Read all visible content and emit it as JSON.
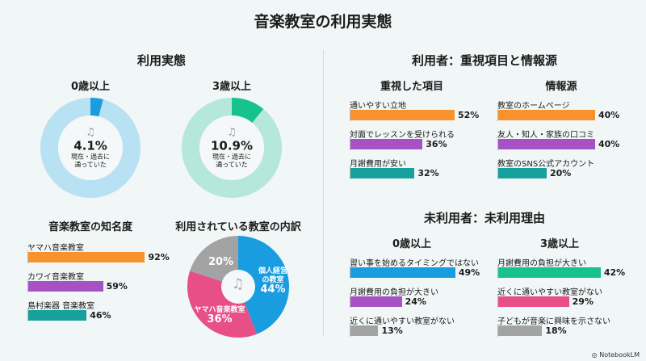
{
  "title": "音楽教室の利用実態",
  "left": {
    "title": "利用実態",
    "donuts": [
      {
        "label": "0歳以上",
        "value": 4.1,
        "value_text": "4.1%",
        "caption1": "現在・過去に",
        "caption2": "通っていた",
        "color": "#1a9de0",
        "track": "#b9e1f4"
      },
      {
        "label": "3歳以上",
        "value": 10.9,
        "value_text": "10.9%",
        "caption1": "現在・過去に",
        "caption2": "通っていた",
        "color": "#17c28f",
        "track": "#b6e8da"
      }
    ],
    "awareness": {
      "title": "音楽教室の知名度",
      "items": [
        {
          "label": "ヤマハ音楽教室",
          "value": 92,
          "text": "92%",
          "color": "#f7922e"
        },
        {
          "label": "カワイ音楽教室",
          "value": 59,
          "text": "59%",
          "color": "#a652c4"
        },
        {
          "label": "島村楽器 音楽教室",
          "value": 46,
          "text": "46%",
          "color": "#17a19c"
        }
      ]
    },
    "breakdown": {
      "title": "利用されている教室の内訳",
      "slices": [
        {
          "label": "個人経営の教室",
          "line1": "個人経営",
          "line2": "の教室",
          "value": 44,
          "text": "44%",
          "color": "#1a9de0"
        },
        {
          "label": "ヤマハ音楽教室",
          "line1": "ヤマハ音楽教室",
          "line2": "",
          "value": 36,
          "text": "36%",
          "color": "#e84f86"
        },
        {
          "label": "",
          "line1": "",
          "line2": "",
          "value": 20,
          "text": "20%",
          "color": "#a3a3a3"
        }
      ]
    }
  },
  "right_top": {
    "title": "利用者：重視項目と情報源",
    "priorities": {
      "title": "重視した項目",
      "items": [
        {
          "label": "通いやすい立地",
          "value": 52,
          "text": "52%",
          "color": "#f7922e"
        },
        {
          "label": "対面でレッスンを受けられる",
          "value": 36,
          "text": "36%",
          "color": "#a652c4"
        },
        {
          "label": "月謝費用が安い",
          "value": 32,
          "text": "32%",
          "color": "#17a19c"
        }
      ]
    },
    "sources": {
      "title": "情報源",
      "items": [
        {
          "label": "教室のホームページ",
          "value": 40,
          "text": "40%",
          "color": "#f7922e"
        },
        {
          "label": "友人・知人・家族の口コミ",
          "value": 40,
          "text": "40%",
          "color": "#a652c4"
        },
        {
          "label": "教室のSNS公式アカウント",
          "value": 20,
          "text": "20%",
          "color": "#17a19c"
        }
      ]
    }
  },
  "right_bottom": {
    "title": "未利用者：未利用理由",
    "age0": {
      "title": "0歳以上",
      "items": [
        {
          "label": "習い事を始めるタイミングではない",
          "value": 49,
          "text": "49%",
          "color": "#1a9de0"
        },
        {
          "label": "月謝費用の負担が大きい",
          "value": 24,
          "text": "24%",
          "color": "#a652c4"
        },
        {
          "label": "近くに通いやすい教室がない",
          "value": 13,
          "text": "13%",
          "color": "#a3a3a3"
        }
      ]
    },
    "age3": {
      "title": "3歳以上",
      "items": [
        {
          "label": "月謝費用の負担が大きい",
          "value": 42,
          "text": "42%",
          "color": "#17c28f"
        },
        {
          "label": "近くに通いやすい教室がない",
          "value": 29,
          "text": "29%",
          "color": "#e84f86"
        },
        {
          "label": "子どもが音楽に興味を示さない",
          "value": 18,
          "text": "18%",
          "color": "#a3a3a3"
        }
      ]
    }
  },
  "footer": "NotebookLM",
  "icons": {
    "note": "music-note-icon"
  }
}
